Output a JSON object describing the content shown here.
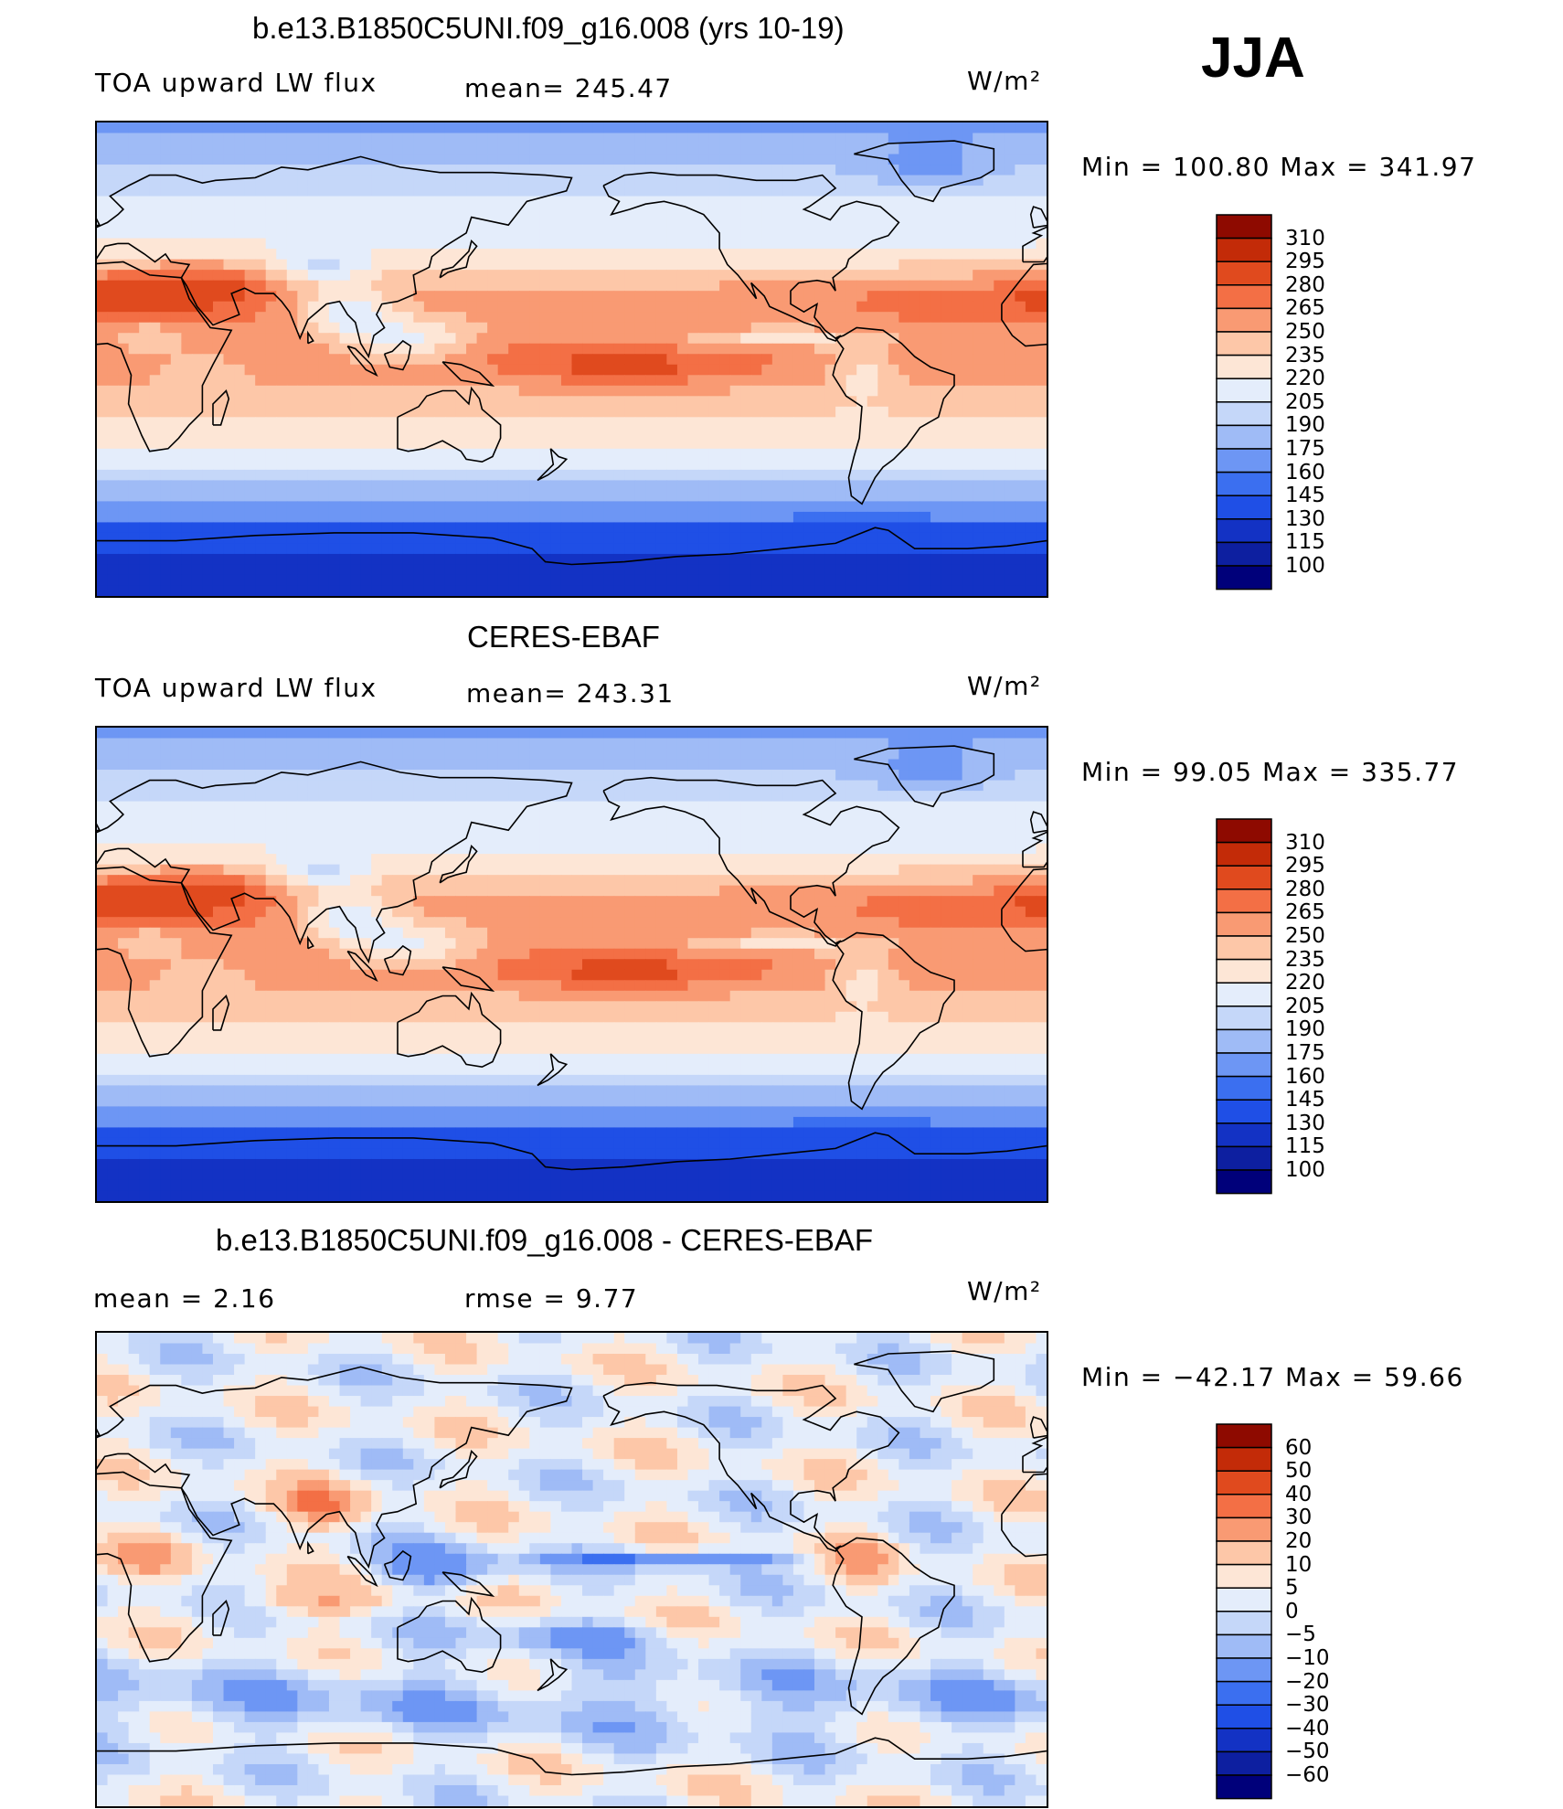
{
  "season": "JJA",
  "units": "W/m²",
  "chart_data": [
    {
      "type": "heatmap",
      "title": "b.e13.B1850C5UNI.f09_g16.008 (yrs 10-19)",
      "left_label": "TOA upward LW flux",
      "center_label": "mean=  245.47",
      "right_label": "W/m²",
      "minmax": "Min  =  100.80  Max  =  341.97",
      "levels": [
        100,
        115,
        130,
        145,
        160,
        175,
        190,
        205,
        220,
        235,
        250,
        265,
        280,
        295,
        310
      ],
      "colorbar_labels": [
        "310",
        "295",
        "280",
        "265",
        "250",
        "235",
        "220",
        "205",
        "190",
        "175",
        "160",
        "145",
        "130",
        "115",
        "100"
      ],
      "colors": [
        "#00007a",
        "#0d1fa0",
        "#1332c4",
        "#1f4fe6",
        "#3b6ff0",
        "#6d96f4",
        "#9fbbf6",
        "#c5d7f9",
        "#e4edfb",
        "#fde6d6",
        "#fdc7a8",
        "#f99a73",
        "#f36f45",
        "#e04a1e",
        "#c32b08",
        "#8e0a00"
      ]
    },
    {
      "type": "heatmap",
      "title": "CERES-EBAF",
      "left_label": "TOA upward LW flux",
      "center_label": "mean=  243.31",
      "right_label": "W/m²",
      "minmax": "Min  =    99.05  Max  =  335.77",
      "levels": [
        100,
        115,
        130,
        145,
        160,
        175,
        190,
        205,
        220,
        235,
        250,
        265,
        280,
        295,
        310
      ],
      "colorbar_labels": [
        "310",
        "295",
        "280",
        "265",
        "250",
        "235",
        "220",
        "205",
        "190",
        "175",
        "160",
        "145",
        "130",
        "115",
        "100"
      ],
      "colors": [
        "#00007a",
        "#0d1fa0",
        "#1332c4",
        "#1f4fe6",
        "#3b6ff0",
        "#6d96f4",
        "#9fbbf6",
        "#c5d7f9",
        "#e4edfb",
        "#fde6d6",
        "#fdc7a8",
        "#f99a73",
        "#f36f45",
        "#e04a1e",
        "#c32b08",
        "#8e0a00"
      ]
    },
    {
      "type": "heatmap",
      "title": "b.e13.B1850C5UNI.f09_g16.008 - CERES-EBAF",
      "left_label": "mean  =      2.16",
      "center_label": "rmse  =      9.77",
      "right_label": "W/m²",
      "minmax": "Min  =  −42.17  Max  =    59.66",
      "levels": [
        -60,
        -50,
        -40,
        -30,
        -20,
        -10,
        -5,
        0,
        5,
        10,
        20,
        30,
        40,
        50,
        60
      ],
      "colorbar_labels": [
        "60",
        "50",
        "40",
        "30",
        "20",
        "10",
        "5",
        "0",
        "−5",
        "−10",
        "−20",
        "−30",
        "−40",
        "−50",
        "−60"
      ],
      "colors": [
        "#00007a",
        "#0d1fa0",
        "#1332c4",
        "#1f4fe6",
        "#3b6ff0",
        "#6d96f4",
        "#9fbbf6",
        "#c5d7f9",
        "#e4edfb",
        "#fde6d6",
        "#fdc7a8",
        "#f99a73",
        "#f36f45",
        "#e04a1e",
        "#c32b08",
        "#8e0a00"
      ]
    }
  ]
}
